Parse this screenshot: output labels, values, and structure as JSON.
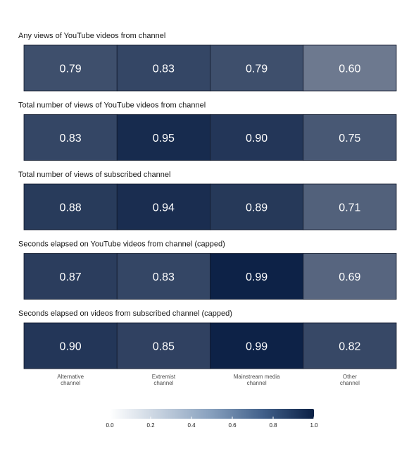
{
  "chart_data": {
    "type": "heatmap",
    "categories": [
      "Alternative channel",
      "Extremist channel",
      "Mainstream media channel",
      "Other channel"
    ],
    "category_lines": [
      [
        "Alternative",
        "channel"
      ],
      [
        "Extremist",
        "channel"
      ],
      [
        "Mainstream media",
        "channel"
      ],
      [
        "Other",
        "channel"
      ]
    ],
    "rows": [
      {
        "name": "Any views of YouTube videos from channel",
        "values": [
          "0.79",
          "0.83",
          "0.79",
          "0.60"
        ]
      },
      {
        "name": "Total number of views of YouTube videos from channel",
        "values": [
          "0.83",
          "0.95",
          "0.90",
          "0.75"
        ]
      },
      {
        "name": "Total number of views of subscribed channel",
        "values": [
          "0.88",
          "0.94",
          "0.89",
          "0.71"
        ]
      },
      {
        "name": "Seconds elapsed on YouTube videos from channel (capped)",
        "values": [
          "0.87",
          "0.83",
          "0.99",
          "0.69"
        ]
      },
      {
        "name": "Seconds elapsed on videos from subscribed channel (capped)",
        "values": [
          "0.90",
          "0.85",
          "0.99",
          "0.82"
        ]
      }
    ],
    "color_scale": {
      "low": "#ffffff",
      "high": "#0b2045",
      "range": [
        0,
        1
      ]
    },
    "legend": {
      "ticks": [
        "0.0",
        "0.2",
        "0.4",
        "0.6",
        "0.8",
        "1.0"
      ],
      "placement": "bottom"
    }
  }
}
